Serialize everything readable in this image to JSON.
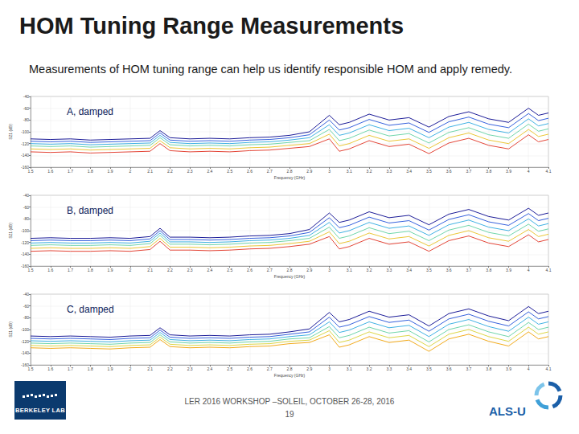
{
  "page": {
    "title": "HOM Tuning Range Measurements",
    "subtitle": "Measurements of HOM tuning range can help us identify responsible HOM and apply remedy.",
    "footer_event": "LER 2016 WORKSHOP –SOLEIL,  OCTOBER 26-28, 2016",
    "page_number": "19",
    "logo_left": "BERKELEY LAB",
    "logo_right": "ALS-U"
  },
  "chart_data": [
    {
      "type": "line",
      "title": "A, damped",
      "x_label": "Frequency (GHz)",
      "y_label": "S21 (dB)",
      "xlim": [
        1.5,
        4.1
      ],
      "xticks": [
        1.5,
        1.6,
        1.7,
        1.8,
        1.9,
        2.0,
        2.1,
        2.2,
        2.3,
        2.4,
        2.5,
        2.6,
        2.7,
        2.8,
        2.9,
        3.0,
        3.1,
        3.2,
        3.3,
        3.4,
        3.5,
        3.6,
        3.7,
        3.8,
        3.9,
        4.0,
        4.1
      ],
      "ylim": [
        -160,
        -40
      ],
      "yticks": [
        -160,
        -140,
        -120,
        -100,
        -80,
        -60,
        -40
      ],
      "grid": true,
      "x": [
        1.5,
        1.6,
        1.7,
        1.8,
        1.9,
        2.0,
        2.1,
        2.15,
        2.2,
        2.3,
        2.4,
        2.5,
        2.6,
        2.7,
        2.8,
        2.9,
        3.0,
        3.05,
        3.1,
        3.2,
        3.3,
        3.4,
        3.5,
        3.6,
        3.7,
        3.8,
        3.9,
        4.0,
        4.05,
        4.1
      ],
      "series": [
        {
          "color": "#00008b",
          "values": [
            -112,
            -113,
            -112,
            -114,
            -113,
            -112,
            -111,
            -98,
            -110,
            -112,
            -111,
            -112,
            -110,
            -109,
            -106,
            -100,
            -72,
            -88,
            -84,
            -70,
            -80,
            -76,
            -92,
            -74,
            -66,
            -78,
            -84,
            -60,
            -72,
            -68
          ]
        },
        {
          "color": "#1f4fd8",
          "values": [
            -116,
            -117,
            -116,
            -118,
            -117,
            -116,
            -115,
            -102,
            -114,
            -116,
            -115,
            -116,
            -114,
            -113,
            -110,
            -105,
            -80,
            -97,
            -93,
            -79,
            -89,
            -85,
            -101,
            -83,
            -75,
            -87,
            -93,
            -69,
            -81,
            -77
          ]
        },
        {
          "color": "#2aa8e0",
          "values": [
            -120,
            -121,
            -120,
            -122,
            -121,
            -120,
            -119,
            -106,
            -118,
            -120,
            -119,
            -120,
            -118,
            -117,
            -114,
            -110,
            -88,
            -106,
            -102,
            -88,
            -98,
            -94,
            -110,
            -92,
            -84,
            -96,
            -102,
            -78,
            -90,
            -86
          ]
        },
        {
          "color": "#5fd0a0",
          "values": [
            -124,
            -125,
            -124,
            -126,
            -125,
            -124,
            -123,
            -110,
            -122,
            -124,
            -123,
            -124,
            -122,
            -121,
            -118,
            -115,
            -96,
            -115,
            -111,
            -97,
            -107,
            -103,
            -119,
            -101,
            -93,
            -105,
            -111,
            -87,
            -99,
            -95
          ]
        },
        {
          "color": "#e8c020",
          "values": [
            -129,
            -130,
            -129,
            -131,
            -130,
            -129,
            -128,
            -115,
            -127,
            -129,
            -128,
            -129,
            -127,
            -126,
            -123,
            -120,
            -104,
            -124,
            -120,
            -106,
            -116,
            -112,
            -128,
            -110,
            -102,
            -114,
            -120,
            -96,
            -108,
            -104
          ]
        },
        {
          "color": "#e03020",
          "values": [
            -134,
            -135,
            -134,
            -136,
            -135,
            -134,
            -133,
            -120,
            -132,
            -134,
            -133,
            -134,
            -132,
            -131,
            -128,
            -125,
            -112,
            -133,
            -129,
            -115,
            -125,
            -121,
            -137,
            -119,
            -111,
            -123,
            -129,
            -105,
            -117,
            -113
          ]
        }
      ]
    },
    {
      "type": "line",
      "title": "B, damped",
      "x_label": "Frequency (GHz)",
      "y_label": "S21 (dB)",
      "xlim": [
        1.5,
        4.1
      ],
      "xticks": [
        1.5,
        1.6,
        1.7,
        1.8,
        1.9,
        2.0,
        2.1,
        2.2,
        2.3,
        2.4,
        2.5,
        2.6,
        2.7,
        2.8,
        2.9,
        3.0,
        3.1,
        3.2,
        3.3,
        3.4,
        3.5,
        3.6,
        3.7,
        3.8,
        3.9,
        4.0,
        4.1
      ],
      "ylim": [
        -160,
        -40
      ],
      "yticks": [
        -160,
        -140,
        -120,
        -100,
        -80,
        -60,
        -40
      ],
      "grid": true,
      "x": [
        1.5,
        1.6,
        1.7,
        1.8,
        1.9,
        2.0,
        2.1,
        2.15,
        2.2,
        2.3,
        2.4,
        2.5,
        2.6,
        2.7,
        2.8,
        2.9,
        3.0,
        3.05,
        3.1,
        3.2,
        3.3,
        3.4,
        3.5,
        3.6,
        3.7,
        3.8,
        3.9,
        4.0,
        4.05,
        4.1
      ],
      "series": [
        {
          "color": "#00008b",
          "values": [
            -113,
            -112,
            -113,
            -113,
            -112,
            -113,
            -110,
            -96,
            -111,
            -111,
            -112,
            -111,
            -109,
            -108,
            -105,
            -98,
            -70,
            -86,
            -82,
            -68,
            -78,
            -74,
            -90,
            -72,
            -64,
            -76,
            -82,
            -62,
            -74,
            -70
          ]
        },
        {
          "color": "#1f4fd8",
          "values": [
            -117,
            -116,
            -117,
            -117,
            -116,
            -117,
            -114,
            -100,
            -115,
            -115,
            -116,
            -115,
            -113,
            -112,
            -109,
            -103,
            -78,
            -95,
            -91,
            -77,
            -87,
            -83,
            -99,
            -81,
            -73,
            -85,
            -91,
            -71,
            -83,
            -79
          ]
        },
        {
          "color": "#2aa8e0",
          "values": [
            -121,
            -120,
            -121,
            -121,
            -120,
            -121,
            -118,
            -104,
            -119,
            -119,
            -120,
            -119,
            -117,
            -116,
            -113,
            -108,
            -86,
            -104,
            -100,
            -86,
            -96,
            -92,
            -108,
            -90,
            -82,
            -94,
            -100,
            -80,
            -92,
            -88
          ]
        },
        {
          "color": "#5fd0a0",
          "values": [
            -125,
            -124,
            -125,
            -125,
            -124,
            -125,
            -122,
            -108,
            -123,
            -123,
            -124,
            -123,
            -121,
            -120,
            -117,
            -113,
            -94,
            -113,
            -109,
            -95,
            -105,
            -101,
            -117,
            -99,
            -91,
            -103,
            -109,
            -89,
            -101,
            -97
          ]
        },
        {
          "color": "#e8c020",
          "values": [
            -130,
            -129,
            -130,
            -130,
            -129,
            -130,
            -127,
            -113,
            -128,
            -128,
            -129,
            -128,
            -126,
            -125,
            -122,
            -118,
            -102,
            -122,
            -118,
            -104,
            -114,
            -110,
            -126,
            -108,
            -100,
            -112,
            -118,
            -98,
            -110,
            -106
          ]
        },
        {
          "color": "#e03020",
          "values": [
            -135,
            -134,
            -135,
            -135,
            -134,
            -135,
            -132,
            -118,
            -133,
            -133,
            -134,
            -133,
            -131,
            -130,
            -127,
            -123,
            -110,
            -131,
            -127,
            -113,
            -123,
            -119,
            -135,
            -117,
            -109,
            -121,
            -127,
            -107,
            -119,
            -115
          ]
        }
      ]
    },
    {
      "type": "line",
      "title": "C, damped",
      "x_label": "Frequency (GHz)",
      "y_label": "S21 (dB)",
      "xlim": [
        1.5,
        4.1
      ],
      "xticks": [
        1.5,
        1.6,
        1.7,
        1.8,
        1.9,
        2.0,
        2.1,
        2.2,
        2.3,
        2.4,
        2.5,
        2.6,
        2.7,
        2.8,
        2.9,
        3.0,
        3.1,
        3.2,
        3.3,
        3.4,
        3.5,
        3.6,
        3.7,
        3.8,
        3.9,
        4.0,
        4.1
      ],
      "ylim": [
        -160,
        -40
      ],
      "yticks": [
        -160,
        -140,
        -120,
        -100,
        -80,
        -60,
        -40
      ],
      "grid": true,
      "x": [
        1.5,
        1.6,
        1.7,
        1.8,
        1.9,
        2.0,
        2.1,
        2.15,
        2.2,
        2.3,
        2.4,
        2.5,
        2.6,
        2.7,
        2.8,
        2.9,
        3.0,
        3.05,
        3.1,
        3.2,
        3.3,
        3.4,
        3.5,
        3.6,
        3.7,
        3.8,
        3.9,
        4.0,
        4.05,
        4.1
      ],
      "series": [
        {
          "color": "#00008b",
          "values": [
            -111,
            -112,
            -111,
            -112,
            -113,
            -111,
            -110,
            -97,
            -109,
            -111,
            -110,
            -111,
            -109,
            -108,
            -104,
            -99,
            -71,
            -87,
            -83,
            -69,
            -79,
            -75,
            -94,
            -73,
            -65,
            -77,
            -85,
            -61,
            -73,
            -69
          ]
        },
        {
          "color": "#1f4fd8",
          "values": [
            -115,
            -116,
            -115,
            -116,
            -117,
            -115,
            -114,
            -101,
            -113,
            -115,
            -114,
            -115,
            -113,
            -112,
            -108,
            -104,
            -79,
            -96,
            -92,
            -78,
            -88,
            -84,
            -103,
            -82,
            -74,
            -86,
            -94,
            -70,
            -82,
            -78
          ]
        },
        {
          "color": "#2aa8e0",
          "values": [
            -119,
            -120,
            -119,
            -120,
            -121,
            -119,
            -118,
            -105,
            -117,
            -119,
            -118,
            -119,
            -117,
            -116,
            -112,
            -109,
            -87,
            -105,
            -101,
            -87,
            -97,
            -93,
            -112,
            -91,
            -83,
            -95,
            -103,
            -79,
            -91,
            -87
          ]
        },
        {
          "color": "#5fd0a0",
          "values": [
            -123,
            -124,
            -123,
            -124,
            -125,
            -123,
            -122,
            -109,
            -121,
            -123,
            -122,
            -123,
            -121,
            -120,
            -116,
            -114,
            -95,
            -114,
            -110,
            -96,
            -106,
            -102,
            -121,
            -100,
            -92,
            -104,
            -112,
            -88,
            -100,
            -96
          ]
        },
        {
          "color": "#d8d030",
          "values": [
            -127,
            -128,
            -127,
            -128,
            -129,
            -127,
            -126,
            -113,
            -125,
            -127,
            -126,
            -127,
            -125,
            -124,
            -120,
            -118,
            -102,
            -122,
            -118,
            -104,
            -114,
            -110,
            -129,
            -108,
            -100,
            -112,
            -120,
            -96,
            -108,
            -104
          ]
        },
        {
          "color": "#f0a000",
          "values": [
            -131,
            -132,
            -131,
            -132,
            -133,
            -131,
            -130,
            -117,
            -129,
            -131,
            -130,
            -131,
            -129,
            -128,
            -124,
            -122,
            -109,
            -130,
            -126,
            -112,
            -122,
            -118,
            -137,
            -116,
            -108,
            -120,
            -128,
            -104,
            -116,
            -112
          ]
        }
      ]
    }
  ]
}
